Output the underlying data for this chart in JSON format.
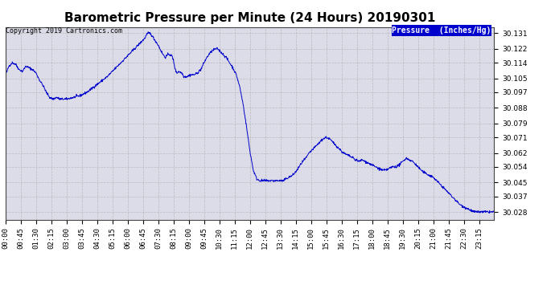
{
  "title": "Barometric Pressure per Minute (24 Hours) 20190301",
  "copyright": "Copyright 2019 Cartronics.com",
  "legend_label": "Pressure  (Inches/Hg)",
  "legend_bg": "#0000cc",
  "legend_text_color": "#ffffff",
  "line_color": "#0000cc",
  "bg_color": "#ffffff",
  "plot_bg_color": "#dcdce8",
  "grid_color": "#aaaaaa",
  "yticks": [
    30.028,
    30.037,
    30.045,
    30.054,
    30.062,
    30.071,
    30.079,
    30.088,
    30.097,
    30.105,
    30.114,
    30.122,
    30.131
  ],
  "ylim": [
    30.0235,
    30.1345
  ],
  "xtick_labels": [
    "00:00",
    "00:45",
    "01:30",
    "02:15",
    "03:00",
    "03:45",
    "04:30",
    "05:15",
    "06:00",
    "06:45",
    "07:30",
    "08:15",
    "09:00",
    "09:45",
    "10:30",
    "11:15",
    "12:00",
    "12:45",
    "13:30",
    "14:15",
    "15:00",
    "15:45",
    "16:30",
    "17:15",
    "18:00",
    "18:45",
    "19:30",
    "20:15",
    "21:00",
    "21:45",
    "22:30",
    "23:15"
  ],
  "title_fontsize": 11,
  "copyright_fontsize": 6,
  "tick_fontsize": 6.5,
  "legend_fontsize": 7,
  "waypoints": [
    [
      0,
      30.107
    ],
    [
      10,
      30.112
    ],
    [
      20,
      30.114
    ],
    [
      30,
      30.113
    ],
    [
      40,
      30.11
    ],
    [
      50,
      30.109
    ],
    [
      60,
      30.112
    ],
    [
      70,
      30.111
    ],
    [
      80,
      30.11
    ],
    [
      90,
      30.108
    ],
    [
      100,
      30.104
    ],
    [
      110,
      30.101
    ],
    [
      120,
      30.097
    ],
    [
      130,
      30.094
    ],
    [
      140,
      30.093
    ],
    [
      150,
      30.094
    ],
    [
      160,
      30.093
    ],
    [
      170,
      30.093
    ],
    [
      180,
      30.093
    ],
    [
      200,
      30.094
    ],
    [
      220,
      30.095
    ],
    [
      240,
      30.097
    ],
    [
      260,
      30.1
    ],
    [
      280,
      30.103
    ],
    [
      300,
      30.106
    ],
    [
      320,
      30.11
    ],
    [
      340,
      30.114
    ],
    [
      360,
      30.118
    ],
    [
      380,
      30.122
    ],
    [
      400,
      30.126
    ],
    [
      410,
      30.128
    ],
    [
      415,
      30.13
    ],
    [
      420,
      30.131
    ],
    [
      425,
      30.131
    ],
    [
      430,
      30.13
    ],
    [
      440,
      30.127
    ],
    [
      450,
      30.124
    ],
    [
      460,
      30.12
    ],
    [
      470,
      30.117
    ],
    [
      475,
      30.118
    ],
    [
      480,
      30.119
    ],
    [
      490,
      30.118
    ],
    [
      495,
      30.115
    ],
    [
      500,
      30.11
    ],
    [
      505,
      30.108
    ],
    [
      510,
      30.109
    ],
    [
      520,
      30.108
    ],
    [
      525,
      30.106
    ],
    [
      535,
      30.106
    ],
    [
      545,
      30.107
    ],
    [
      555,
      30.107
    ],
    [
      565,
      30.108
    ],
    [
      575,
      30.11
    ],
    [
      580,
      30.112
    ],
    [
      590,
      30.116
    ],
    [
      600,
      30.119
    ],
    [
      610,
      30.121
    ],
    [
      620,
      30.122
    ],
    [
      625,
      30.122
    ],
    [
      630,
      30.121
    ],
    [
      640,
      30.119
    ],
    [
      650,
      30.117
    ],
    [
      660,
      30.114
    ],
    [
      670,
      30.111
    ],
    [
      680,
      30.107
    ],
    [
      690,
      30.1
    ],
    [
      700,
      30.09
    ],
    [
      710,
      30.077
    ],
    [
      720,
      30.063
    ],
    [
      730,
      30.052
    ],
    [
      740,
      30.047
    ],
    [
      750,
      30.046
    ],
    [
      755,
      30.046
    ],
    [
      765,
      30.046
    ],
    [
      775,
      30.046
    ],
    [
      785,
      30.046
    ],
    [
      795,
      30.046
    ],
    [
      805,
      30.046
    ],
    [
      815,
      30.046
    ],
    [
      820,
      30.046
    ],
    [
      825,
      30.047
    ],
    [
      835,
      30.048
    ],
    [
      845,
      30.049
    ],
    [
      855,
      30.051
    ],
    [
      865,
      30.054
    ],
    [
      875,
      30.057
    ],
    [
      885,
      30.059
    ],
    [
      895,
      30.062
    ],
    [
      905,
      30.064
    ],
    [
      915,
      30.066
    ],
    [
      925,
      30.068
    ],
    [
      935,
      30.07
    ],
    [
      945,
      30.071
    ],
    [
      955,
      30.07
    ],
    [
      965,
      30.068
    ],
    [
      975,
      30.066
    ],
    [
      985,
      30.064
    ],
    [
      995,
      30.062
    ],
    [
      1005,
      30.061
    ],
    [
      1015,
      30.06
    ],
    [
      1025,
      30.059
    ],
    [
      1030,
      30.058
    ],
    [
      1035,
      30.058
    ],
    [
      1040,
      30.057
    ],
    [
      1050,
      30.058
    ],
    [
      1060,
      30.057
    ],
    [
      1070,
      30.056
    ],
    [
      1080,
      30.055
    ],
    [
      1090,
      30.054
    ],
    [
      1100,
      30.053
    ],
    [
      1110,
      30.052
    ],
    [
      1120,
      30.052
    ],
    [
      1130,
      30.053
    ],
    [
      1140,
      30.054
    ],
    [
      1150,
      30.054
    ],
    [
      1160,
      30.055
    ],
    [
      1170,
      30.057
    ],
    [
      1180,
      30.059
    ],
    [
      1190,
      30.058
    ],
    [
      1200,
      30.057
    ],
    [
      1210,
      30.055
    ],
    [
      1220,
      30.053
    ],
    [
      1230,
      30.051
    ],
    [
      1240,
      30.05
    ],
    [
      1250,
      30.049
    ],
    [
      1260,
      30.048
    ],
    [
      1270,
      30.046
    ],
    [
      1280,
      30.044
    ],
    [
      1290,
      30.042
    ],
    [
      1300,
      30.04
    ],
    [
      1310,
      30.038
    ],
    [
      1320,
      30.036
    ],
    [
      1330,
      30.034
    ],
    [
      1340,
      30.032
    ],
    [
      1350,
      30.031
    ],
    [
      1360,
      30.03
    ],
    [
      1370,
      30.029
    ],
    [
      1380,
      30.028
    ],
    [
      1390,
      30.028
    ],
    [
      1400,
      30.028
    ],
    [
      1420,
      30.028
    ],
    [
      1439,
      30.028
    ]
  ]
}
